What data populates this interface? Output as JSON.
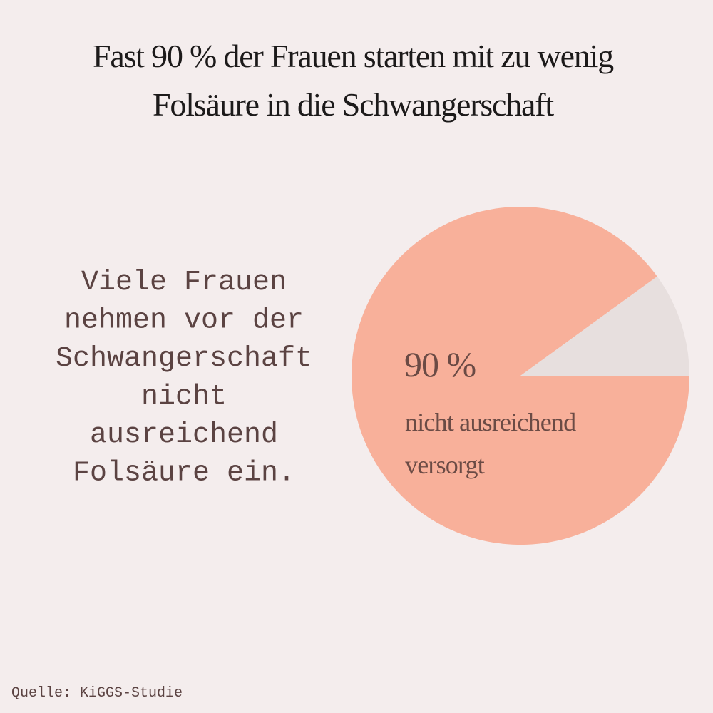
{
  "chart_data": {
    "type": "pie",
    "title": [
      "Fast 90 % der Frauen starten mit zu wenig",
      "Folsäure in die Schwangerschaft"
    ],
    "description": [
      "Viele Frauen",
      "nehmen vor der",
      "Schwangerschaft",
      "nicht",
      "ausreichend",
      "Folsäure ein."
    ],
    "categories": [
      "nicht ausreichend versorgt",
      null
    ],
    "values": [
      90,
      10
    ],
    "value_labels": [
      "90 %",
      null
    ],
    "colors": [
      "#f8b09a",
      "#e7dfde"
    ],
    "source": "Quelle: KiGGS-Studie"
  }
}
